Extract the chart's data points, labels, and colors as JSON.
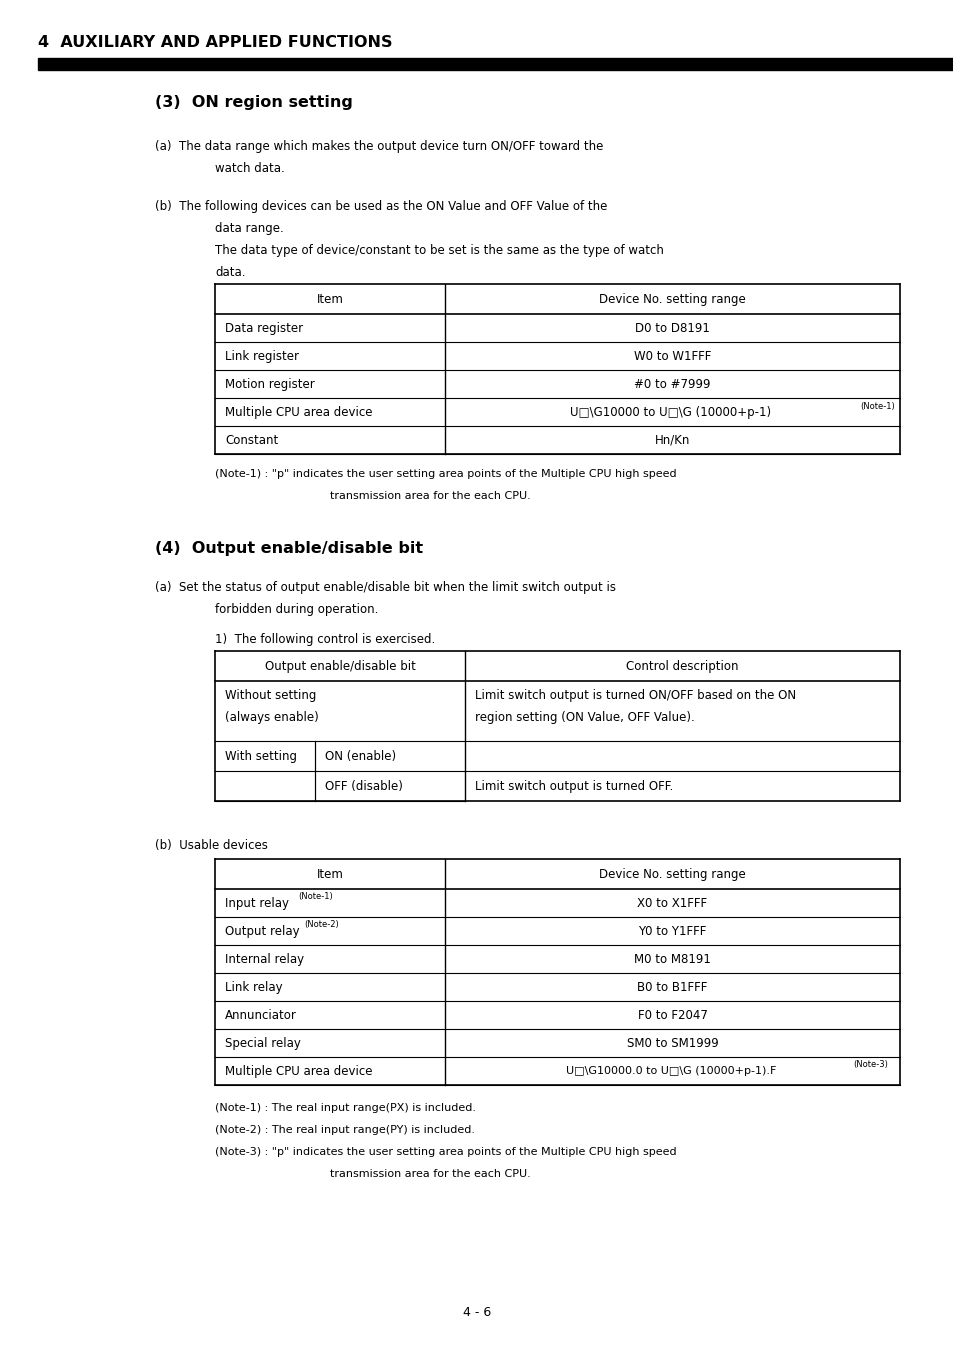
{
  "bg_color": "#ffffff",
  "page_width": 9.54,
  "page_height": 13.5,
  "dpi": 100,
  "header_title": "4  AUXILIARY AND APPLIED FUNCTIONS",
  "section3_title": "(3)  ON region setting",
  "section3a_text": "(a)  The data range which makes the output device turn ON/OFF toward the\n        watch data.",
  "section3b_text1": "(b)  The following devices can be used as the ON Value and OFF Value of the\n        data range.",
  "section3b_text2": "       The data type of device/constant to be set is the same as the type of watch\n       data.",
  "table1_headers": [
    "Item",
    "Device No. setting range"
  ],
  "table1_rows": [
    [
      "Data register",
      "D0 to D8191"
    ],
    [
      "Link register",
      "W0 to W1FFF"
    ],
    [
      "Motion register",
      "#0 to #7999"
    ],
    [
      "Multiple CPU area device",
      "U□\\G10000 to U□\\G (10000+p-1) (Note-1)"
    ],
    [
      "Constant",
      "Hn/Kn"
    ]
  ],
  "note1_text": "(Note-1) : \"p\" indicates the user setting area points of the Multiple CPU high speed\n                    transmission area for the each CPU.",
  "section4_title": "(4)  Output enable/disable bit",
  "section4a_text1": "(a)  Set the status of output enable/disable bit when the limit switch output is\n        forbidden during operation.",
  "section4a_text2": "1)  The following control is exercised.",
  "table2_headers": [
    "Output enable/disable bit",
    "Control description"
  ],
  "table2_rows": [
    [
      "Without setting\n(always enable)",
      "Limit switch output is turned ON/OFF based on the ON\nregion setting (ON Value, OFF Value)."
    ],
    [
      "With setting | ON (enable)",
      ""
    ],
    [
      "With setting | OFF (disable)",
      "Limit switch output is turned OFF."
    ]
  ],
  "section4b_text": "(b)  Usable devices",
  "table3_headers": [
    "Item",
    "Device No. setting range"
  ],
  "table3_rows": [
    [
      "Input relay (Note-1)",
      "X0 to X1FFF"
    ],
    [
      "Output relay (Note-2)",
      "Y0 to Y1FFF"
    ],
    [
      "Internal relay",
      "M0 to M8191"
    ],
    [
      "Link relay",
      "B0 to B1FFF"
    ],
    [
      "Annunciator",
      "F0 to F2047"
    ],
    [
      "Special relay",
      "SM0 to SM1999"
    ],
    [
      "Multiple CPU area device",
      "U□\\G10000.0 to U□\\G (10000+p-1).F (Note-3)"
    ]
  ],
  "note3_text1": "(Note-1) : The real input range(PX) is included.",
  "note3_text2": "(Note-2) : The real input range(PY) is included.",
  "note3_text3": "(Note-3) : \"p\" indicates the user setting area points of the Multiple CPU high speed\n                    transmission area for the each CPU.",
  "page_number": "4 - 6"
}
